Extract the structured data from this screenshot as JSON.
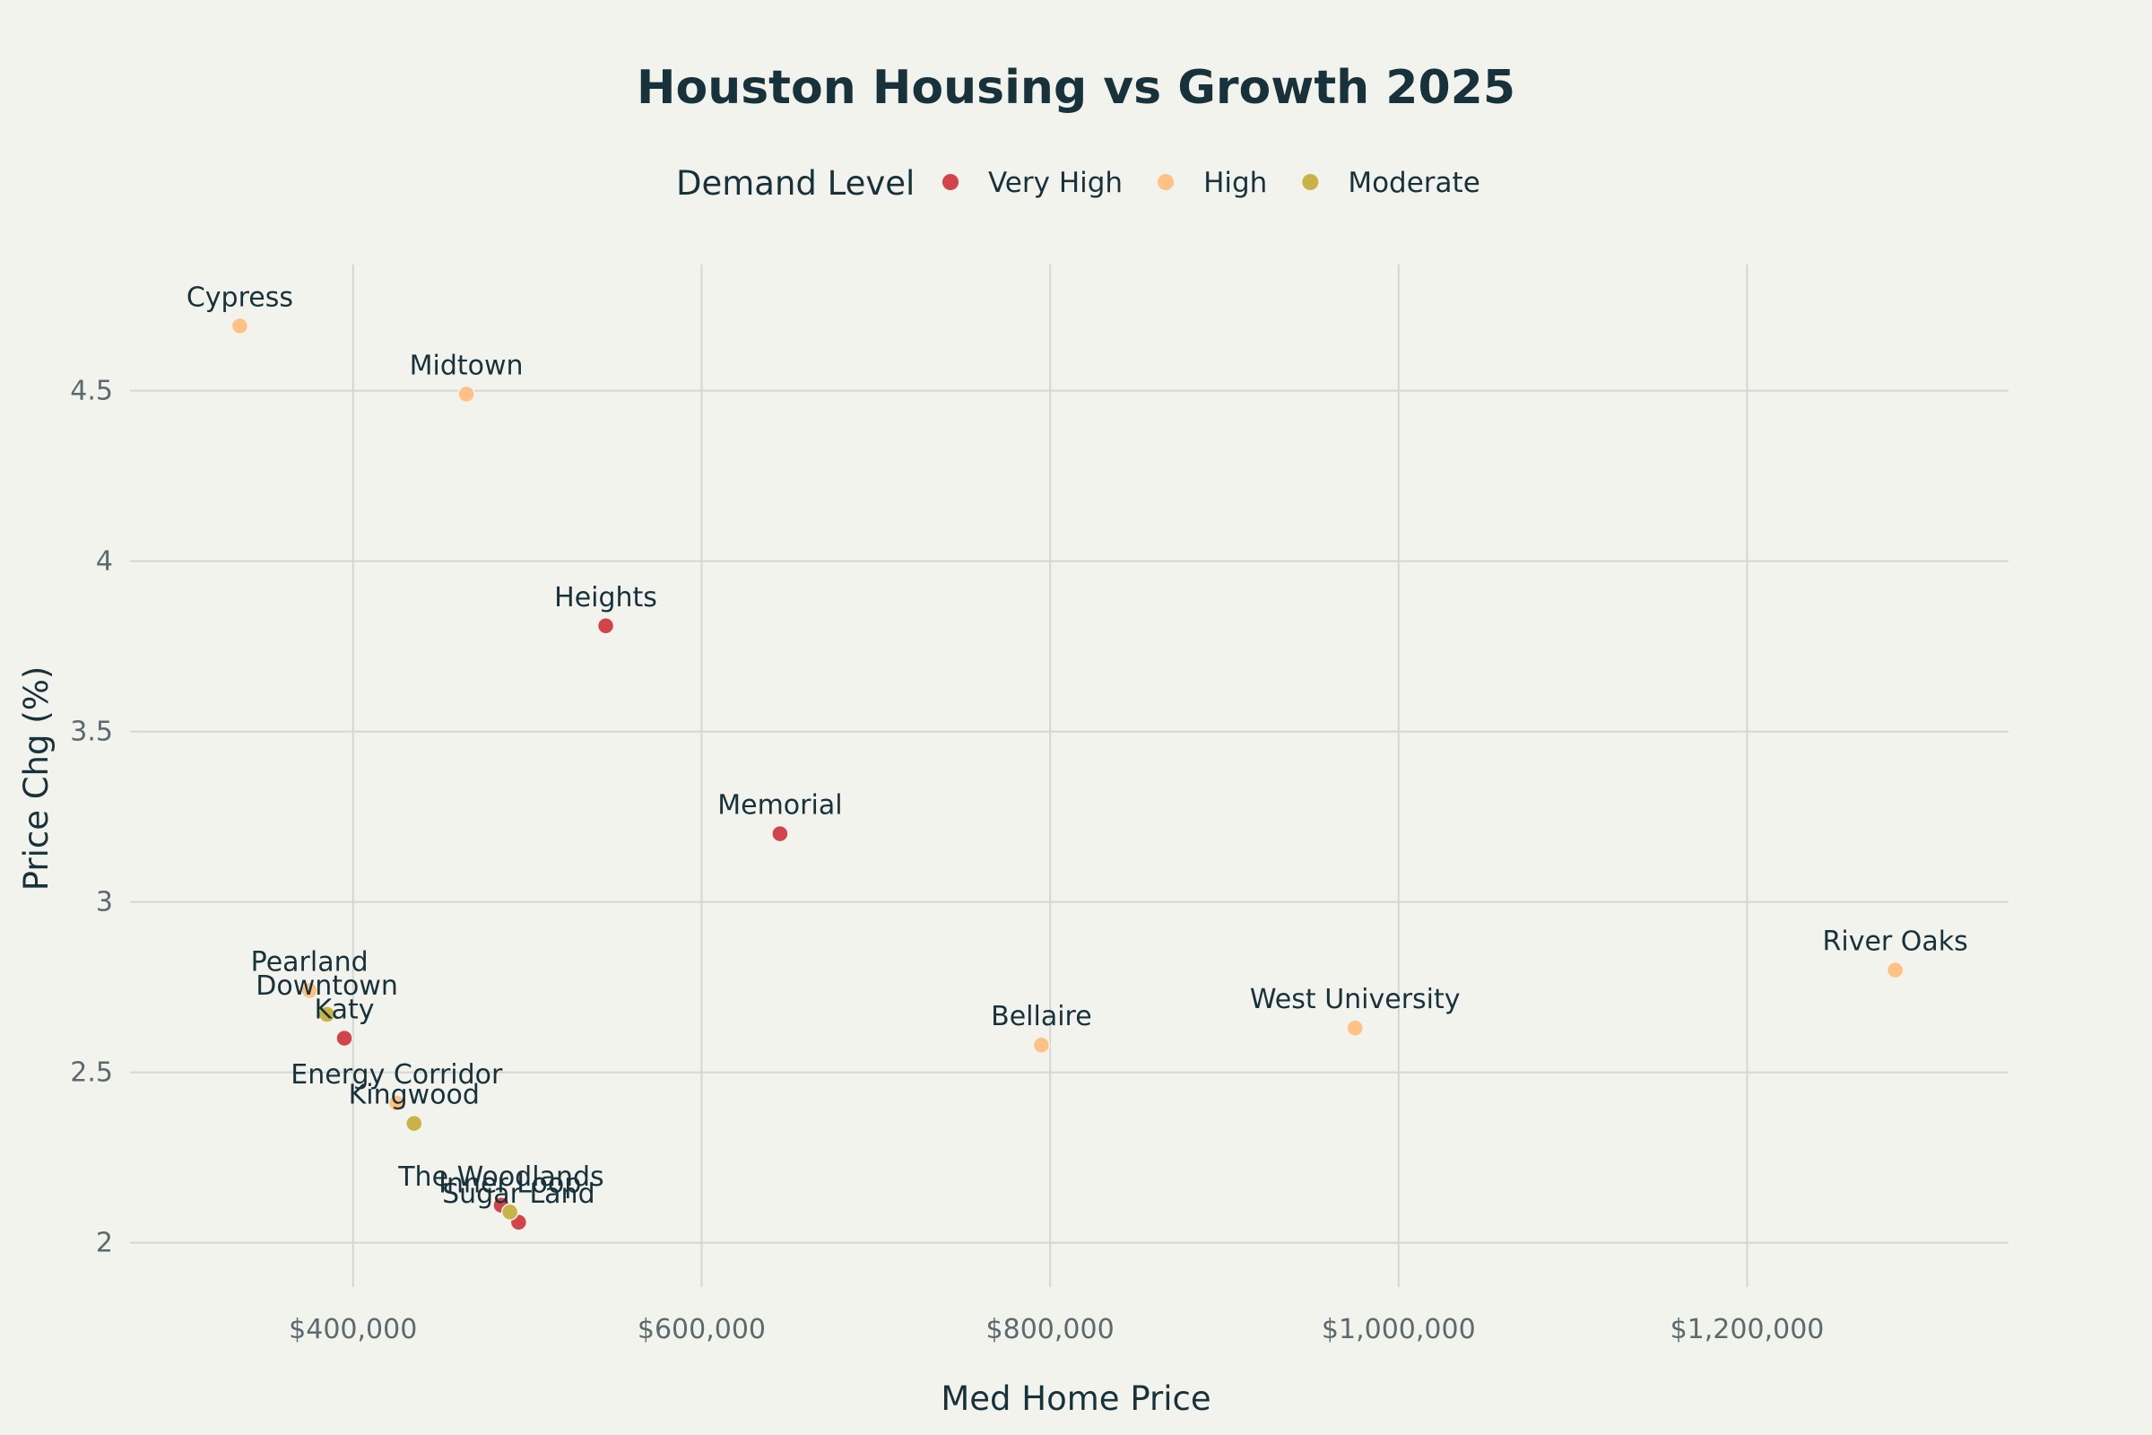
{
  "chart_data": {
    "type": "scatter",
    "title": "Houston Housing vs Growth 2025",
    "xlabel": "Med Home Price",
    "ylabel": "Price Chg (%)",
    "xlim": [
      272000,
      1350000
    ],
    "ylim": [
      1.87,
      4.87
    ],
    "x_ticks": [
      400000,
      600000,
      800000,
      1000000,
      1200000
    ],
    "x_tick_labels": [
      "$400,000",
      "$600,000",
      "$800,000",
      "$1,000,000",
      "$1,200,000"
    ],
    "y_ticks": [
      2,
      2.5,
      3,
      3.5,
      4,
      4.5
    ],
    "y_tick_labels": [
      "2",
      "2.5",
      "3",
      "3.5",
      "4",
      "4.5"
    ],
    "grid": true,
    "legend": {
      "title": "Demand Level",
      "placement": "top-center",
      "entries": [
        {
          "name": "Very High",
          "color": "#d3434a"
        },
        {
          "name": "High",
          "color": "#ffc185"
        },
        {
          "name": "Moderate",
          "color": "#c9b347"
        }
      ]
    },
    "series": [
      {
        "name": "Very High",
        "color": "#d3434a",
        "points": [
          {
            "label": "Heights",
            "x": 545000,
            "y": 3.81
          },
          {
            "label": "Memorial",
            "x": 645000,
            "y": 3.2
          },
          {
            "label": "Katy",
            "x": 395000,
            "y": 2.6
          },
          {
            "label": "The Woodlands",
            "x": 485000,
            "y": 2.11
          },
          {
            "label": "Sugar Land",
            "x": 495000,
            "y": 2.06
          }
        ]
      },
      {
        "name": "High",
        "color": "#ffc185",
        "points": [
          {
            "label": "Cypress",
            "x": 335000,
            "y": 4.69
          },
          {
            "label": "Midtown",
            "x": 465000,
            "y": 4.49
          },
          {
            "label": "River Oaks",
            "x": 1285000,
            "y": 2.8
          },
          {
            "label": "West University",
            "x": 975000,
            "y": 2.63
          },
          {
            "label": "Bellaire",
            "x": 795000,
            "y": 2.58
          },
          {
            "label": "Pearland",
            "x": 375000,
            "y": 2.74
          },
          {
            "label": "Energy Corridor",
            "x": 425000,
            "y": 2.41
          }
        ]
      },
      {
        "name": "Moderate",
        "color": "#c9b347",
        "points": [
          {
            "label": "Downtown",
            "x": 385000,
            "y": 2.67
          },
          {
            "label": "Kingwood",
            "x": 435000,
            "y": 2.35
          },
          {
            "label": "Inner Loop",
            "x": 490000,
            "y": 2.09
          }
        ]
      }
    ]
  }
}
